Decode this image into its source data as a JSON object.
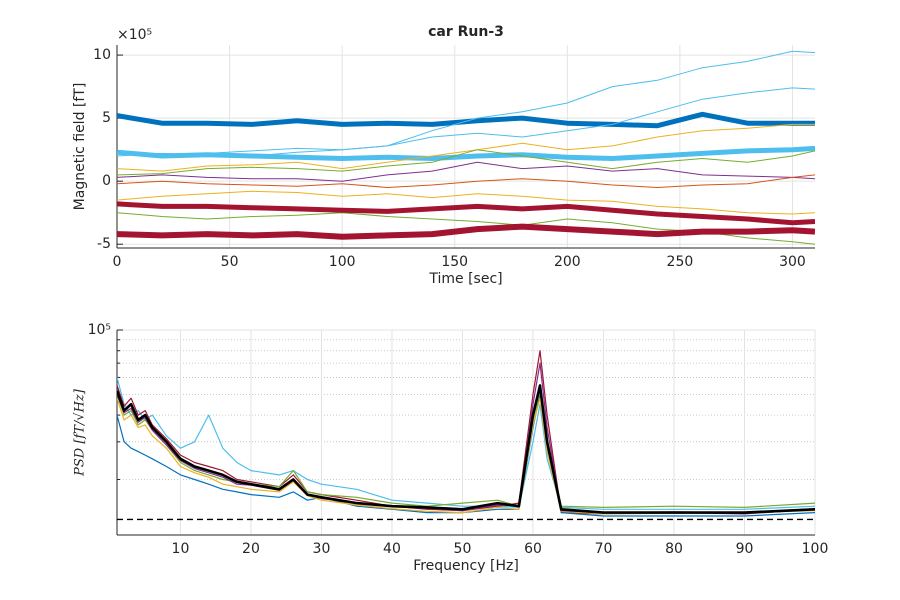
{
  "chart_data": [
    {
      "type": "line",
      "title": "car Run-3",
      "xlabel": "Time [sec]",
      "ylabel": "Magnetic field [fT]",
      "y_exponent_label": "×10⁵",
      "xlim": [
        0,
        310
      ],
      "xticks": [
        0,
        50,
        100,
        150,
        200,
        250,
        300
      ],
      "ylim": [
        -5.3,
        10.8
      ],
      "yticks": [
        -5,
        0,
        5,
        10
      ],
      "grid": true,
      "x": [
        0,
        20,
        40,
        60,
        80,
        100,
        120,
        140,
        160,
        180,
        200,
        220,
        240,
        260,
        280,
        300,
        310
      ],
      "series": [
        {
          "color": "#0072bd",
          "line_width": 5,
          "values": [
            5.2,
            4.6,
            4.6,
            4.5,
            4.8,
            4.5,
            4.6,
            4.5,
            4.8,
            5.0,
            4.6,
            4.5,
            4.4,
            5.3,
            4.6,
            4.6,
            4.6
          ]
        },
        {
          "color": "#4dbeee",
          "line_width": 1,
          "values": [
            2.0,
            2.2,
            2.1,
            2.0,
            2.3,
            2.5,
            2.8,
            4.0,
            5.0,
            5.5,
            6.2,
            7.5,
            8.0,
            9.0,
            9.5,
            10.3,
            10.2
          ]
        },
        {
          "color": "#4dbeee",
          "line_width": 1,
          "values": [
            2.2,
            2.0,
            2.2,
            2.4,
            2.6,
            2.5,
            2.8,
            3.5,
            3.8,
            3.5,
            4.0,
            4.5,
            5.5,
            6.5,
            7.0,
            7.4,
            7.3
          ]
        },
        {
          "color": "#4dbeee",
          "line_width": 5,
          "values": [
            2.3,
            2.0,
            2.1,
            2.0,
            1.9,
            1.8,
            1.9,
            1.8,
            2.0,
            2.1,
            1.9,
            1.8,
            2.0,
            2.2,
            2.4,
            2.5,
            2.6
          ]
        },
        {
          "color": "#edb120",
          "line_width": 1,
          "values": [
            1.0,
            0.8,
            1.2,
            1.3,
            1.5,
            1.0,
            1.5,
            2.0,
            2.5,
            3.0,
            2.5,
            2.8,
            3.5,
            4.0,
            4.2,
            4.5,
            4.5
          ]
        },
        {
          "color": "#77ac30",
          "line_width": 1,
          "values": [
            0.5,
            0.6,
            1.0,
            1.1,
            1.0,
            0.8,
            1.2,
            1.5,
            2.5,
            2.0,
            1.5,
            1.0,
            1.5,
            1.8,
            1.5,
            2.0,
            2.4
          ]
        },
        {
          "color": "#7e2f8e",
          "line_width": 1,
          "values": [
            0.3,
            0.5,
            0.3,
            0.2,
            0.2,
            0.0,
            0.5,
            0.8,
            1.5,
            1.0,
            1.2,
            0.8,
            1.0,
            0.5,
            0.4,
            0.3,
            0.2
          ]
        },
        {
          "color": "#d95319",
          "line_width": 1,
          "values": [
            -0.2,
            0,
            -0.2,
            -0.3,
            -0.4,
            -0.2,
            -0.5,
            -0.3,
            0,
            0.2,
            0,
            -0.3,
            -0.5,
            -0.3,
            -0.2,
            0.3,
            0.5
          ]
        },
        {
          "color": "#edb120",
          "line_width": 1,
          "values": [
            -1.5,
            -1.2,
            -1.0,
            -0.8,
            -0.9,
            -1.2,
            -1.0,
            -1.3,
            -1.0,
            -1.2,
            -1.5,
            -1.6,
            -2.0,
            -2.2,
            -2.5,
            -2.6,
            -2.5
          ]
        },
        {
          "color": "#77ac30",
          "line_width": 1,
          "values": [
            -2.5,
            -2.8,
            -3.0,
            -2.8,
            -2.7,
            -2.5,
            -2.8,
            -3.0,
            -3.2,
            -3.5,
            -3.0,
            -3.3,
            -3.8,
            -4.0,
            -4.5,
            -4.8,
            -5.0
          ]
        },
        {
          "color": "#a2142f",
          "line_width": 5,
          "values": [
            -1.8,
            -2.0,
            -2.0,
            -2.1,
            -2.2,
            -2.3,
            -2.4,
            -2.2,
            -2.0,
            -2.2,
            -2.0,
            -2.3,
            -2.6,
            -2.8,
            -3.0,
            -3.3,
            -3.2
          ]
        },
        {
          "color": "#a2142f",
          "line_width": 6,
          "values": [
            -4.2,
            -4.3,
            -4.2,
            -4.3,
            -4.2,
            -4.4,
            -4.3,
            -4.2,
            -3.8,
            -3.6,
            -3.8,
            -4.0,
            -4.2,
            -4.0,
            -4.0,
            -3.9,
            -4.0
          ]
        }
      ]
    },
    {
      "type": "line",
      "xlabel": "Frequency [Hz]",
      "ylabel": "PSD [fT/√Hz]",
      "yscale": "log",
      "xlim": [
        1,
        100
      ],
      "xticks": [
        10,
        20,
        30,
        40,
        50,
        60,
        70,
        80,
        90,
        100
      ],
      "ylim": [
        11000,
        100000
      ],
      "yticks": [
        {
          "value": 100000,
          "label": "10⁵"
        }
      ],
      "minor_yticks": [
        20000,
        30000,
        40000,
        50000,
        60000,
        70000,
        80000,
        90000
      ],
      "grid": true,
      "minor_grid": "dotted",
      "reference_line": {
        "value": 13000,
        "style": "dashed",
        "color": "#000000"
      },
      "x": [
        1,
        2,
        3,
        4,
        5,
        6,
        8,
        10,
        12,
        14,
        16,
        18,
        20,
        24,
        26,
        28,
        30,
        35,
        40,
        45,
        50,
        55,
        58,
        60,
        61,
        62,
        64,
        70,
        80,
        90,
        100
      ],
      "series": [
        {
          "color": "#4dbeee",
          "line_width": 1.2,
          "values": [
            60000,
            45000,
            40000,
            42000,
            38000,
            40000,
            32000,
            28000,
            30000,
            40000,
            28000,
            24000,
            22000,
            21000,
            22000,
            20000,
            19000,
            18000,
            16000,
            15500,
            15000,
            15000,
            14800,
            30000,
            45000,
            25000,
            14800,
            14500,
            14500,
            14500,
            15000
          ]
        },
        {
          "color": "#a2142f",
          "line_width": 1.2,
          "values": [
            55000,
            44000,
            48000,
            40000,
            42000,
            36000,
            31000,
            26000,
            24000,
            23000,
            22000,
            20000,
            19500,
            18500,
            21000,
            17500,
            17000,
            16000,
            15000,
            14500,
            14300,
            15000,
            15500,
            50000,
            80000,
            40000,
            14000,
            13800,
            14000,
            13800,
            14500
          ]
        },
        {
          "color": "#0072bd",
          "line_width": 1.2,
          "values": [
            40000,
            30000,
            28000,
            27000,
            26000,
            25000,
            23000,
            21000,
            20000,
            19000,
            18000,
            17500,
            17000,
            16500,
            17500,
            16000,
            16500,
            15000,
            14500,
            14000,
            14000,
            14500,
            14500,
            35000,
            50000,
            28000,
            14000,
            13500,
            13500,
            13500,
            14000
          ]
        },
        {
          "color": "#77ac30",
          "line_width": 1.2,
          "values": [
            50000,
            40000,
            42000,
            36000,
            38000,
            34000,
            29000,
            24000,
            22000,
            21000,
            20000,
            19500,
            19000,
            18500,
            22000,
            17500,
            17000,
            16500,
            15500,
            15000,
            15500,
            16000,
            15000,
            38000,
            52000,
            29000,
            15000,
            14800,
            15000,
            14800,
            15500
          ]
        },
        {
          "color": "#edb120",
          "line_width": 1.2,
          "values": [
            48000,
            38000,
            40000,
            35000,
            36000,
            32000,
            28000,
            23000,
            21500,
            20500,
            19000,
            18500,
            18000,
            17500,
            19500,
            16800,
            16000,
            15200,
            14600,
            14200,
            14000,
            14800,
            14500,
            36000,
            48000,
            27000,
            14200,
            13800,
            13900,
            14000,
            14300
          ]
        },
        {
          "color": "#7e2f8e",
          "line_width": 1.2,
          "values": [
            50000,
            41000,
            43000,
            37000,
            39000,
            34000,
            29000,
            24500,
            22500,
            21500,
            20500,
            19000,
            18800,
            17800,
            19800,
            17000,
            16300,
            15500,
            15000,
            14600,
            14300,
            15200,
            15000,
            45000,
            70000,
            35000,
            14300,
            14000,
            14100,
            14000,
            14600
          ]
        },
        {
          "color": "#000000",
          "line_width": 2.6,
          "values": [
            52000,
            42000,
            45000,
            38000,
            40000,
            35000,
            30000,
            25000,
            23000,
            22000,
            21000,
            19500,
            19000,
            18000,
            20000,
            17000,
            16500,
            15500,
            15000,
            14800,
            14500,
            15500,
            15000,
            40000,
            55000,
            30000,
            14500,
            14000,
            14000,
            14000,
            14500
          ]
        }
      ]
    }
  ]
}
